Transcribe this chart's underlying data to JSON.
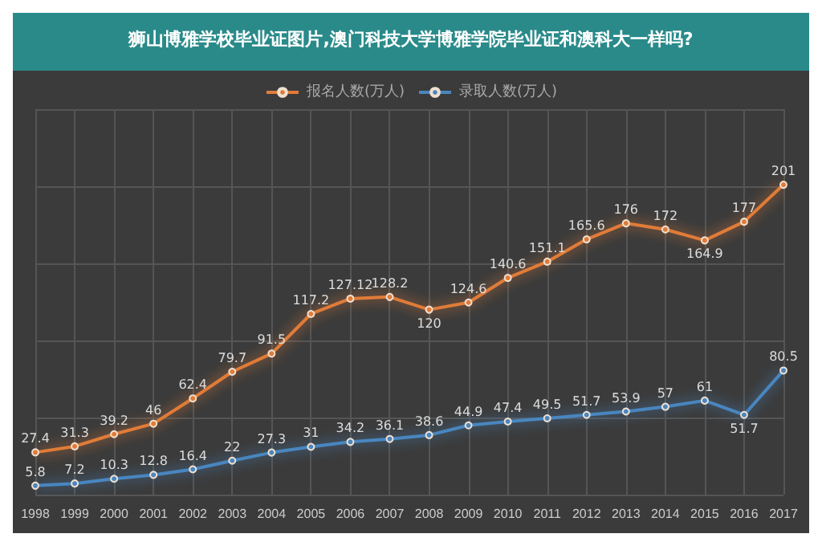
{
  "chart_data": {
    "type": "line",
    "title": "狮山博雅学校毕业证图片,澳门科技大学博雅学院毕业证和澳科大一样吗?",
    "categories": [
      "1998",
      "1999",
      "2000",
      "2001",
      "2002",
      "2003",
      "2004",
      "2005",
      "2006",
      "2007",
      "2008",
      "2009",
      "2010",
      "2011",
      "2012",
      "2013",
      "2014",
      "2015",
      "2016",
      "2017"
    ],
    "series": [
      {
        "name": "报名人数(万人)",
        "color": "#e07b39",
        "values": [
          27.4,
          31.3,
          39.2,
          46,
          62.4,
          79.7,
          91.5,
          117.2,
          127.12,
          128.2,
          120,
          124.6,
          140.6,
          151.1,
          165.6,
          176,
          172,
          164.9,
          177,
          201
        ]
      },
      {
        "name": "录取人数(万人)",
        "color": "#4a86c0",
        "values": [
          5.8,
          7.2,
          10.3,
          12.8,
          16.4,
          22,
          27.3,
          31,
          34.2,
          36.1,
          38.6,
          44.9,
          47.4,
          49.5,
          51.7,
          53.9,
          57,
          61,
          51.7,
          80.5
        ]
      }
    ],
    "data_labels": true,
    "grid": true,
    "legend": "top",
    "tick_labels": "x",
    "marker": "circle"
  }
}
